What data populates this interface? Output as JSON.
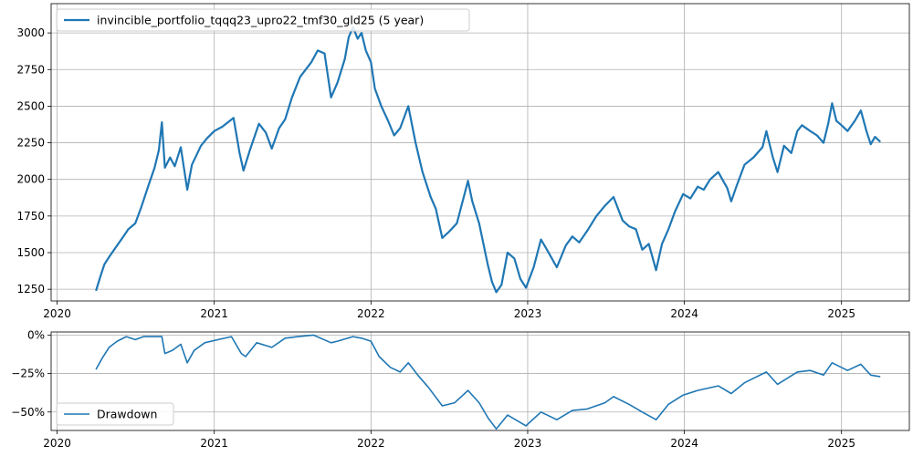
{
  "chart_data": [
    {
      "type": "line",
      "panel": "price",
      "series": [
        {
          "name": "invincible_portfolio_tqqq23_upro22_tmf30_gld25 (5 year)",
          "color": "#1f77b4",
          "points": [
            [
              "2020-04-01",
              1245
            ],
            [
              "2020-04-10",
              1330
            ],
            [
              "2020-04-20",
              1420
            ],
            [
              "2020-05-01",
              1470
            ],
            [
              "2020-05-15",
              1530
            ],
            [
              "2020-06-01",
              1600
            ],
            [
              "2020-06-15",
              1660
            ],
            [
              "2020-07-01",
              1700
            ],
            [
              "2020-07-15",
              1810
            ],
            [
              "2020-08-01",
              1960
            ],
            [
              "2020-08-15",
              2080
            ],
            [
              "2020-08-25",
              2200
            ],
            [
              "2020-09-01",
              2390
            ],
            [
              "2020-09-08",
              2080
            ],
            [
              "2020-09-20",
              2150
            ],
            [
              "2020-10-01",
              2090
            ],
            [
              "2020-10-15",
              2220
            ],
            [
              "2020-10-30",
              1930
            ],
            [
              "2020-11-10",
              2100
            ],
            [
              "2020-12-01",
              2230
            ],
            [
              "2020-12-15",
              2280
            ],
            [
              "2021-01-01",
              2330
            ],
            [
              "2021-01-20",
              2360
            ],
            [
              "2021-02-15",
              2420
            ],
            [
              "2021-03-01",
              2180
            ],
            [
              "2021-03-10",
              2060
            ],
            [
              "2021-03-25",
              2200
            ],
            [
              "2021-04-15",
              2380
            ],
            [
              "2021-05-01",
              2320
            ],
            [
              "2021-05-15",
              2210
            ],
            [
              "2021-06-01",
              2350
            ],
            [
              "2021-06-15",
              2410
            ],
            [
              "2021-07-01",
              2560
            ],
            [
              "2021-07-20",
              2700
            ],
            [
              "2021-08-15",
              2800
            ],
            [
              "2021-08-30",
              2880
            ],
            [
              "2021-09-15",
              2860
            ],
            [
              "2021-09-30",
              2560
            ],
            [
              "2021-10-15",
              2660
            ],
            [
              "2021-11-01",
              2820
            ],
            [
              "2021-11-10",
              2970
            ],
            [
              "2021-11-20",
              3040
            ],
            [
              "2021-12-01",
              2960
            ],
            [
              "2021-12-10",
              3000
            ],
            [
              "2021-12-20",
              2880
            ],
            [
              "2022-01-01",
              2800
            ],
            [
              "2022-01-10",
              2620
            ],
            [
              "2022-01-25",
              2500
            ],
            [
              "2022-02-10",
              2400
            ],
            [
              "2022-02-24",
              2300
            ],
            [
              "2022-03-10",
              2350
            ],
            [
              "2022-03-29",
              2500
            ],
            [
              "2022-04-15",
              2250
            ],
            [
              "2022-05-01",
              2050
            ],
            [
              "2022-05-20",
              1880
            ],
            [
              "2022-06-01",
              1800
            ],
            [
              "2022-06-16",
              1600
            ],
            [
              "2022-07-01",
              1640
            ],
            [
              "2022-07-20",
              1700
            ],
            [
              "2022-08-15",
              1990
            ],
            [
              "2022-08-25",
              1850
            ],
            [
              "2022-09-10",
              1700
            ],
            [
              "2022-09-30",
              1420
            ],
            [
              "2022-10-10",
              1300
            ],
            [
              "2022-10-20",
              1230
            ],
            [
              "2022-11-01",
              1280
            ],
            [
              "2022-11-15",
              1500
            ],
            [
              "2022-12-01",
              1460
            ],
            [
              "2022-12-15",
              1320
            ],
            [
              "2022-12-28",
              1260
            ],
            [
              "2023-01-15",
              1400
            ],
            [
              "2023-02-01",
              1590
            ],
            [
              "2023-02-15",
              1520
            ],
            [
              "2023-03-10",
              1400
            ],
            [
              "2023-03-31",
              1550
            ],
            [
              "2023-04-15",
              1610
            ],
            [
              "2023-05-01",
              1570
            ],
            [
              "2023-05-20",
              1650
            ],
            [
              "2023-06-10",
              1750
            ],
            [
              "2023-06-30",
              1820
            ],
            [
              "2023-07-20",
              1880
            ],
            [
              "2023-08-10",
              1720
            ],
            [
              "2023-08-25",
              1680
            ],
            [
              "2023-09-10",
              1660
            ],
            [
              "2023-09-25",
              1520
            ],
            [
              "2023-10-10",
              1560
            ],
            [
              "2023-10-27",
              1380
            ],
            [
              "2023-11-10",
              1560
            ],
            [
              "2023-11-25",
              1660
            ],
            [
              "2023-12-10",
              1780
            ],
            [
              "2023-12-29",
              1900
            ],
            [
              "2024-01-15",
              1870
            ],
            [
              "2024-02-01",
              1950
            ],
            [
              "2024-02-15",
              1930
            ],
            [
              "2024-03-01",
              2000
            ],
            [
              "2024-03-20",
              2050
            ],
            [
              "2024-04-10",
              1940
            ],
            [
              "2024-04-19",
              1850
            ],
            [
              "2024-05-01",
              1950
            ],
            [
              "2024-05-20",
              2100
            ],
            [
              "2024-06-10",
              2150
            ],
            [
              "2024-07-01",
              2220
            ],
            [
              "2024-07-10",
              2330
            ],
            [
              "2024-07-25",
              2150
            ],
            [
              "2024-08-05",
              2050
            ],
            [
              "2024-08-20",
              2230
            ],
            [
              "2024-09-06",
              2180
            ],
            [
              "2024-09-20",
              2330
            ],
            [
              "2024-10-01",
              2370
            ],
            [
              "2024-10-20",
              2330
            ],
            [
              "2024-11-05",
              2300
            ],
            [
              "2024-11-20",
              2250
            ],
            [
              "2024-12-01",
              2380
            ],
            [
              "2024-12-10",
              2520
            ],
            [
              "2024-12-20",
              2400
            ],
            [
              "2025-01-01",
              2370
            ],
            [
              "2025-01-15",
              2330
            ],
            [
              "2025-02-01",
              2400
            ],
            [
              "2025-02-15",
              2470
            ],
            [
              "2025-02-28",
              2330
            ],
            [
              "2025-03-10",
              2240
            ],
            [
              "2025-03-20",
              2290
            ],
            [
              "2025-03-31",
              2260
            ]
          ]
        }
      ],
      "ylim": [
        1170,
        3200
      ],
      "yticks": [
        1250,
        1500,
        1750,
        2000,
        2250,
        2500,
        2750,
        3000
      ],
      "ytick_labels": [
        "1250",
        "1500",
        "1750",
        "2000",
        "2250",
        "2500",
        "2750",
        "3000"
      ],
      "xlim": [
        "2019-12-18",
        "2025-06-08"
      ],
      "xticks": [
        "2020-01-01",
        "2021-01-01",
        "2022-01-01",
        "2023-01-01",
        "2024-01-01",
        "2025-01-01"
      ],
      "xtick_labels": [
        "2020",
        "2021",
        "2022",
        "2023",
        "2024",
        "2025"
      ],
      "grid": true,
      "legend": "top-left"
    },
    {
      "type": "line",
      "panel": "drawdown",
      "series": [
        {
          "name": "Drawdown",
          "color": "#1f77b4",
          "points": [
            [
              "2020-04-01",
              -22
            ],
            [
              "2020-04-15",
              -15
            ],
            [
              "2020-05-01",
              -8
            ],
            [
              "2020-05-20",
              -4
            ],
            [
              "2020-06-10",
              -1
            ],
            [
              "2020-07-01",
              -3
            ],
            [
              "2020-07-20",
              -1
            ],
            [
              "2020-08-10",
              -1
            ],
            [
              "2020-09-01",
              -1
            ],
            [
              "2020-09-08",
              -12
            ],
            [
              "2020-09-25",
              -10
            ],
            [
              "2020-10-15",
              -6
            ],
            [
              "2020-10-30",
              -18
            ],
            [
              "2020-11-15",
              -10
            ],
            [
              "2020-12-10",
              -5
            ],
            [
              "2021-01-10",
              -3
            ],
            [
              "2021-02-10",
              -1
            ],
            [
              "2021-03-05",
              -12
            ],
            [
              "2021-03-15",
              -14
            ],
            [
              "2021-04-10",
              -5
            ],
            [
              "2021-05-15",
              -8
            ],
            [
              "2021-06-15",
              -2
            ],
            [
              "2021-07-15",
              -1
            ],
            [
              "2021-08-20",
              0
            ],
            [
              "2021-09-30",
              -5
            ],
            [
              "2021-10-15",
              -4
            ],
            [
              "2021-11-20",
              -1
            ],
            [
              "2021-12-10",
              -2
            ],
            [
              "2022-01-01",
              -4
            ],
            [
              "2022-01-20",
              -14
            ],
            [
              "2022-02-15",
              -21
            ],
            [
              "2022-03-10",
              -24
            ],
            [
              "2022-03-29",
              -18
            ],
            [
              "2022-04-20",
              -26
            ],
            [
              "2022-05-15",
              -34
            ],
            [
              "2022-06-16",
              -46
            ],
            [
              "2022-07-15",
              -44
            ],
            [
              "2022-08-15",
              -36
            ],
            [
              "2022-09-10",
              -44
            ],
            [
              "2022-10-01",
              -54
            ],
            [
              "2022-10-20",
              -61
            ],
            [
              "2022-11-15",
              -52
            ],
            [
              "2022-12-28",
              -59
            ],
            [
              "2023-02-01",
              -50
            ],
            [
              "2023-03-10",
              -55
            ],
            [
              "2023-04-15",
              -49
            ],
            [
              "2023-05-20",
              -48
            ],
            [
              "2023-06-30",
              -44
            ],
            [
              "2023-07-20",
              -40
            ],
            [
              "2023-08-25",
              -45
            ],
            [
              "2023-09-25",
              -50
            ],
            [
              "2023-10-27",
              -55
            ],
            [
              "2023-11-25",
              -45
            ],
            [
              "2023-12-29",
              -39
            ],
            [
              "2024-02-01",
              -36
            ],
            [
              "2024-03-20",
              -33
            ],
            [
              "2024-04-19",
              -38
            ],
            [
              "2024-05-20",
              -31
            ],
            [
              "2024-07-10",
              -24
            ],
            [
              "2024-08-05",
              -32
            ],
            [
              "2024-09-20",
              -24
            ],
            [
              "2024-10-20",
              -23
            ],
            [
              "2024-11-20",
              -26
            ],
            [
              "2024-12-10",
              -18
            ],
            [
              "2025-01-15",
              -23
            ],
            [
              "2025-02-15",
              -19
            ],
            [
              "2025-03-10",
              -26
            ],
            [
              "2025-03-31",
              -27
            ]
          ]
        }
      ],
      "ylim": [
        -62,
        2
      ],
      "yticks": [
        0,
        -25,
        -50
      ],
      "ytick_labels": [
        "0%",
        "−25%",
        "−50%"
      ],
      "xlim": [
        "2019-12-18",
        "2025-06-08"
      ],
      "xticks": [
        "2020-01-01",
        "2021-01-01",
        "2022-01-01",
        "2023-01-01",
        "2024-01-01",
        "2025-01-01"
      ],
      "xtick_labels": [
        "2020",
        "2021",
        "2022",
        "2023",
        "2024",
        "2025"
      ],
      "grid": true,
      "legend": "bottom-left"
    }
  ]
}
